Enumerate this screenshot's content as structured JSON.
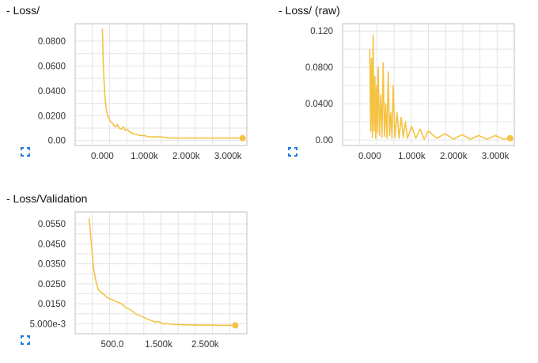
{
  "charts": [
    {
      "title": "- Loss/",
      "expand_icon": "expand-corners-icon"
    },
    {
      "title": "- Loss/ (raw)",
      "expand_icon": "expand-corners-icon"
    },
    {
      "title": "- Loss/Validation",
      "expand_icon": "expand-corners-icon"
    }
  ],
  "colors": {
    "series": "#f5c242",
    "grid": "#e3e3e3",
    "axis": "#bfbfbf",
    "icon": "#1f7ad8"
  },
  "chart_data": [
    {
      "type": "line",
      "title": "- Loss/",
      "xlabel": "",
      "ylabel": "",
      "xlim": [
        -650,
        3450
      ],
      "ylim": [
        -0.004,
        0.094
      ],
      "xticks": [
        0,
        1000,
        2000,
        3000
      ],
      "xtick_labels": [
        "0.000",
        "1.000k",
        "2.000k",
        "3.000k"
      ],
      "yticks": [
        0.0,
        0.02,
        0.04,
        0.06,
        0.08
      ],
      "ytick_labels": [
        "0.00",
        "0.0200",
        "0.0400",
        "0.0600",
        "0.0800"
      ],
      "grid": true,
      "series": [
        {
          "x": [
            0,
            20,
            40,
            60,
            80,
            100,
            120,
            140,
            170,
            200,
            240,
            280,
            320,
            360,
            400,
            450,
            500,
            550,
            600,
            650,
            700,
            800,
            900,
            1000,
            1100,
            1200,
            1400,
            1600,
            1800,
            2000,
            2200,
            2400,
            2600,
            2800,
            3000,
            3200,
            3350
          ],
          "y": [
            0.09,
            0.062,
            0.048,
            0.036,
            0.029,
            0.024,
            0.021,
            0.019,
            0.017,
            0.015,
            0.014,
            0.012,
            0.011,
            0.013,
            0.01,
            0.009,
            0.011,
            0.008,
            0.009,
            0.007,
            0.006,
            0.005,
            0.004,
            0.004,
            0.003,
            0.003,
            0.003,
            0.002,
            0.002,
            0.002,
            0.002,
            0.002,
            0.002,
            0.002,
            0.002,
            0.002,
            0.002
          ]
        }
      ],
      "endpoint_marker": true
    },
    {
      "type": "line",
      "title": "- Loss/ (raw)",
      "xlabel": "",
      "ylabel": "",
      "xlim": [
        -650,
        3450
      ],
      "ylim": [
        -0.006,
        0.128
      ],
      "xticks": [
        0,
        1000,
        2000,
        3000
      ],
      "xtick_labels": [
        "0.000",
        "1.000k",
        "2.000k",
        "3.000k"
      ],
      "yticks": [
        0.0,
        0.04,
        0.08,
        0.12
      ],
      "ytick_labels": [
        "0.00",
        "0.0400",
        "0.0800",
        "0.120"
      ],
      "grid": true,
      "series": [
        {
          "x": [
            0,
            20,
            40,
            60,
            80,
            100,
            120,
            140,
            160,
            180,
            200,
            230,
            260,
            290,
            320,
            350,
            380,
            410,
            440,
            470,
            500,
            530,
            560,
            600,
            650,
            700,
            750,
            800,
            850,
            900,
            1000,
            1100,
            1200,
            1300,
            1400,
            1600,
            1800,
            2000,
            2200,
            2400,
            2600,
            2800,
            3000,
            3200,
            3350
          ],
          "y": [
            0.1,
            0.01,
            0.09,
            0.003,
            0.115,
            0.01,
            0.07,
            0.002,
            0.06,
            0.008,
            0.08,
            0.005,
            0.05,
            0.003,
            0.085,
            0.004,
            0.04,
            0.002,
            0.075,
            0.005,
            0.03,
            0.002,
            0.06,
            0.003,
            0.03,
            0.002,
            0.025,
            0.003,
            0.02,
            0.002,
            0.015,
            0.002,
            0.012,
            0.001,
            0.01,
            0.002,
            0.007,
            0.001,
            0.006,
            0.001,
            0.005,
            0.001,
            0.005,
            0.001,
            0.002
          ]
        }
      ],
      "endpoint_marker": true
    },
    {
      "type": "line",
      "title": "- Loss/Validation",
      "xlabel": "",
      "ylabel": "",
      "xlim": [
        -300,
        3400
      ],
      "ylim": [
        0.0,
        0.061
      ],
      "xticks": [
        500,
        1500,
        2500
      ],
      "xtick_labels": [
        "500.0",
        "1.500k",
        "2.500k"
      ],
      "yticks": [
        0.005,
        0.015,
        0.025,
        0.035,
        0.045,
        0.055
      ],
      "ytick_labels": [
        "5.000e-3",
        "0.0150",
        "0.0250",
        "0.0350",
        "0.0450",
        "0.0550"
      ],
      "grid": true,
      "series": [
        {
          "x": [
            0,
            50,
            100,
            150,
            200,
            300,
            400,
            500,
            600,
            700,
            800,
            900,
            1000,
            1100,
            1200,
            1300,
            1400,
            1500,
            1600,
            1700,
            1800,
            2000,
            2200,
            2400,
            2600,
            2800,
            3000,
            3150
          ],
          "y": [
            0.058,
            0.045,
            0.032,
            0.026,
            0.022,
            0.02,
            0.018,
            0.017,
            0.016,
            0.015,
            0.013,
            0.012,
            0.01,
            0.009,
            0.008,
            0.007,
            0.006,
            0.006,
            0.005,
            0.005,
            0.0047,
            0.0045,
            0.0044,
            0.0043,
            0.0043,
            0.0042,
            0.0042,
            0.0042
          ]
        }
      ],
      "endpoint_marker": true
    }
  ]
}
